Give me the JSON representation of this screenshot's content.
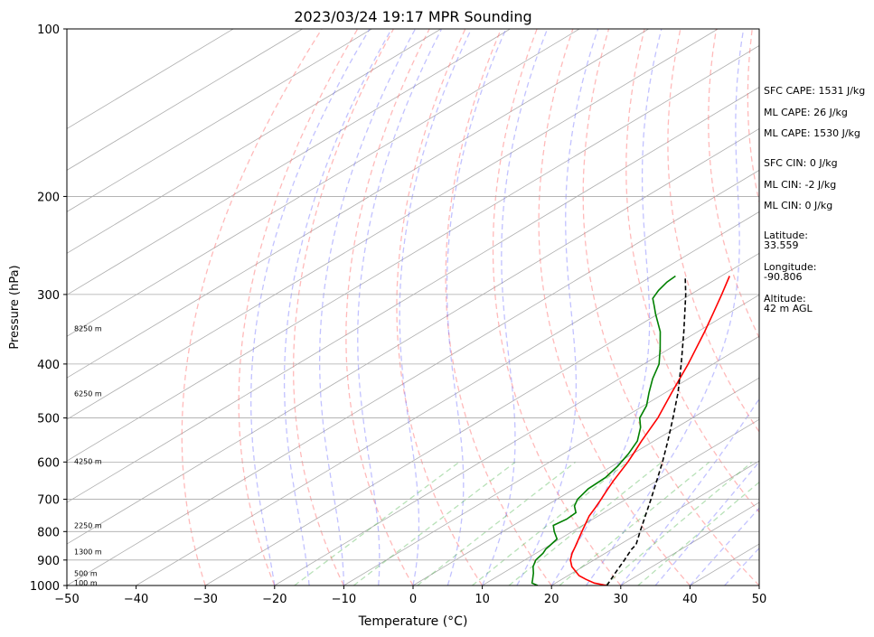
{
  "chart_data": {
    "type": "line",
    "chart_kind": "skew-t",
    "title": "2023/03/24 19:17 MPR Sounding",
    "xlabel": "Temperature (°C)",
    "ylabel": "Pressure (hPa)",
    "xlim": [
      -50,
      50
    ],
    "ylim": [
      1000,
      100
    ],
    "y_scale": "log",
    "grid": true,
    "x_ticks": [
      "−50",
      "−40",
      "−30",
      "−20",
      "−10",
      "0",
      "10",
      "20",
      "30",
      "40",
      "50"
    ],
    "x_tick_values": [
      -50,
      -40,
      -30,
      -20,
      -10,
      0,
      10,
      20,
      30,
      40,
      50
    ],
    "y_ticks": [
      "100",
      "200",
      "300",
      "400",
      "500",
      "600",
      "700",
      "800",
      "900",
      "1000"
    ],
    "y_tick_values": [
      100,
      200,
      300,
      400,
      500,
      600,
      700,
      800,
      900,
      1000
    ],
    "height_labels": [
      {
        "text": "100 m",
        "p": 988
      },
      {
        "text": "500 m",
        "p": 950
      },
      {
        "text": "1300 m",
        "p": 870
      },
      {
        "text": "2250 m",
        "p": 780
      },
      {
        "text": "4250 m",
        "p": 598
      },
      {
        "text": "6250 m",
        "p": 452
      },
      {
        "text": "8250 m",
        "p": 345
      }
    ],
    "series": [
      {
        "color": "#ff0000",
        "dashed": false,
        "points": [
          [
            1000,
            28
          ],
          [
            990,
            25.6
          ],
          [
            975,
            23.5
          ],
          [
            960,
            21.6
          ],
          [
            925,
            18.4
          ],
          [
            900,
            16.6
          ],
          [
            875,
            15.2
          ],
          [
            850,
            14
          ],
          [
            800,
            11.4
          ],
          [
            750,
            8.7
          ],
          [
            725,
            7.6
          ],
          [
            700,
            6.4
          ],
          [
            675,
            5.1
          ],
          [
            650,
            3.8
          ],
          [
            600,
            1.3
          ],
          [
            575,
            -0.2
          ],
          [
            550,
            -1.8
          ],
          [
            500,
            -5.0
          ],
          [
            450,
            -9.1
          ],
          [
            400,
            -13.6
          ],
          [
            350,
            -19.0
          ],
          [
            325,
            -22.1
          ],
          [
            300,
            -25.5
          ],
          [
            278,
            -28.8
          ]
        ]
      },
      {
        "color": "#008000",
        "dashed": false,
        "points": [
          [
            1000,
            18
          ],
          [
            990,
            16.6
          ],
          [
            975,
            15.8
          ],
          [
            950,
            14.4
          ],
          [
            925,
            12.8
          ],
          [
            900,
            11.6
          ],
          [
            875,
            11.0
          ],
          [
            860,
            10.4
          ],
          [
            850,
            10.2
          ],
          [
            825,
            9.6
          ],
          [
            800,
            7.4
          ],
          [
            780,
            5.8
          ],
          [
            760,
            6.2
          ],
          [
            740,
            6.0
          ],
          [
            720,
            4.2
          ],
          [
            700,
            3.0
          ],
          [
            670,
            2.0
          ],
          [
            640,
            1.8
          ],
          [
            610,
            0.8
          ],
          [
            580,
            -0.6
          ],
          [
            550,
            -2.4
          ],
          [
            520,
            -5.2
          ],
          [
            500,
            -7.6
          ],
          [
            475,
            -9.6
          ],
          [
            450,
            -12.4
          ],
          [
            425,
            -15.2
          ],
          [
            400,
            -17.8
          ],
          [
            375,
            -21.4
          ],
          [
            350,
            -25.4
          ],
          [
            325,
            -30.4
          ],
          [
            315,
            -32.4
          ],
          [
            305,
            -34.5
          ],
          [
            295,
            -35.6
          ],
          [
            285,
            -36.4
          ],
          [
            278,
            -36.6
          ]
        ]
      },
      {
        "color": "#000000",
        "dashed": true,
        "points": [
          [
            1000,
            28
          ],
          [
            950,
            26.2
          ],
          [
            900,
            24.4
          ],
          [
            860,
            22.8
          ],
          [
            845,
            22.4
          ],
          [
            800,
            19.8
          ],
          [
            750,
            16.8
          ],
          [
            700,
            13.6
          ],
          [
            650,
            10.1
          ],
          [
            600,
            6.3
          ],
          [
            550,
            2.0
          ],
          [
            500,
            -2.8
          ],
          [
            450,
            -8.2
          ],
          [
            400,
            -14.6
          ],
          [
            350,
            -22.0
          ],
          [
            300,
            -30.7
          ],
          [
            278,
            -35.2
          ]
        ]
      }
    ],
    "annotations": [
      "SFC CAPE: 1531 J/kg",
      "ML CAPE: 26 J/kg",
      "ML CAPE: 1530 J/kg",
      "SFC CIN: 0 J/kg",
      "ML CIN: -2 J/kg",
      "ML CIN: 0 J/kg",
      "Latitude:",
      "33.559",
      "Longitude:",
      "-90.806",
      "Altitude:",
      "42 m AGL"
    ]
  }
}
